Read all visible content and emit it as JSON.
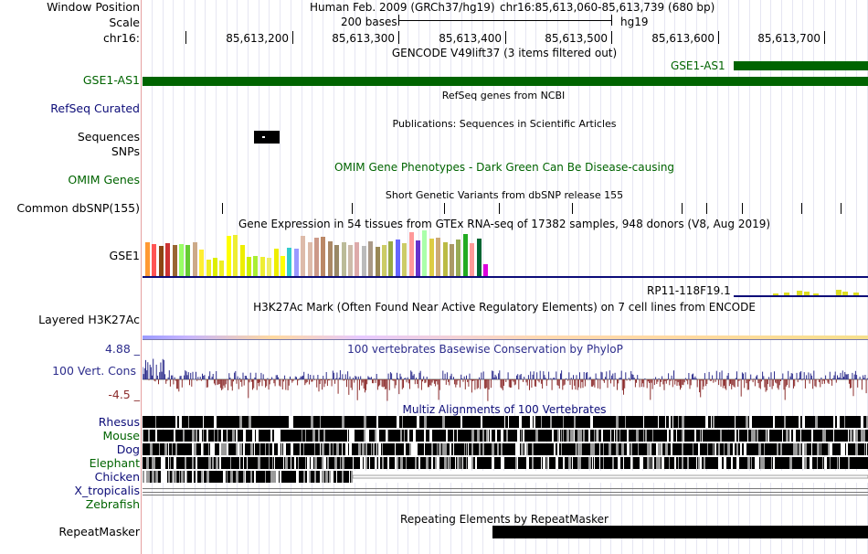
{
  "header": {
    "window_position_label": "Window Position",
    "scale_label": "Scale",
    "chrom_label": "chr16:",
    "assembly": "Human Feb. 2009 (GRCh37/hg19)",
    "position": "chr16:85,613,060-85,613,739 (680 bp)",
    "scale_text": "200 bases",
    "scale_db": "hg19",
    "ruler_ticks": [
      "85,613,200",
      "85,613,300",
      "85,613,400",
      "85,613,500",
      "85,613,600",
      "85,613,700"
    ]
  },
  "tracks": {
    "gencode": {
      "title": "GENCODE V49lift37 (3 items filtered out)",
      "label": "GSE1-AS1",
      "right_label": "GSE1-AS1",
      "color": "#006400"
    },
    "refseq": {
      "title": "RefSeq genes from NCBI",
      "label": "RefSeq Curated",
      "color": "#0c0c78"
    },
    "publications": {
      "title": "Publications: Sequences in Scientific Articles",
      "label1": "Sequences",
      "label2": "SNPs"
    },
    "omim": {
      "title": "OMIM Gene Phenotypes - Dark Green Can Be Disease-causing",
      "label": "OMIM Genes",
      "color": "#006400"
    },
    "dbsnp": {
      "title": "Short Genetic Variants from dbSNP release 155",
      "label": "Common dbSNP(155)"
    },
    "gtex": {
      "title": "Gene Expression in 54 tissues from GTEx RNA-seq of 17382 samples, 948 donors (V8, Aug 2019)",
      "label": "GSE1",
      "right_label": "RP11-118F19.1"
    },
    "h3k27ac": {
      "title": "H3K27Ac Mark (Often Found Near Active Regulatory Elements) on 7 cell lines from ENCODE",
      "label": "Layered H3K27Ac"
    },
    "phylop": {
      "title": "100 vertebrates Basewise Conservation by PhyloP",
      "label": "100 Vert. Cons",
      "max": "4.88 _",
      "min": "-4.5 _",
      "color": "#2d2d8c"
    },
    "multiz": {
      "title": "Multiz Alignments of 100 Vertebrates",
      "species": [
        "Rhesus",
        "Mouse",
        "Dog",
        "Elephant",
        "Chicken",
        "X_tropicalis",
        "Zebrafish"
      ],
      "color": "#0c0c78"
    },
    "repeatmasker": {
      "title": "Repeating Elements by RepeatMasker",
      "label": "RepeatMasker"
    }
  },
  "colors": {
    "green": "#006400",
    "navy": "#0c0c78",
    "cons_pos": "#2d2d8c",
    "cons_neg": "#8c2d2d"
  }
}
